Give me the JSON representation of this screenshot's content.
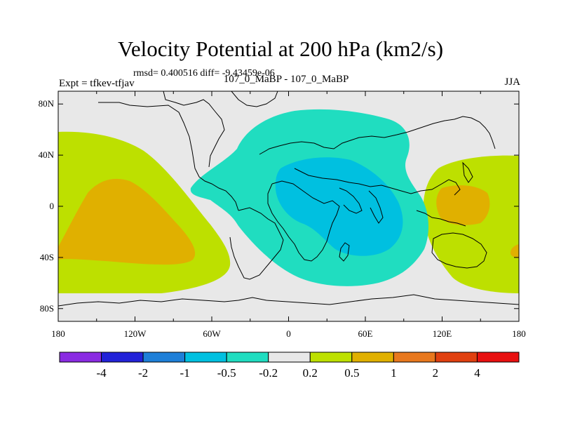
{
  "title": "Velocity Potential at 200 hPa (km2/s)",
  "stats": "rmsd= 0.400516 diff= -9.43459e-06",
  "left_label": "Expt = tfkev-tfjav",
  "center_label": "107_0_MaBP - 107_0_MaBP",
  "right_label": "JJA",
  "lat_labels": [
    "80N",
    "40N",
    "0",
    "40S",
    "80S"
  ],
  "lon_labels": [
    "180",
    "120W",
    "60W",
    "0",
    "60E",
    "120E",
    "180"
  ],
  "colorbar": {
    "levels": [
      "-4",
      "-2",
      "-1",
      "-0.5",
      "-0.2",
      "0.2",
      "0.5",
      "1",
      "2",
      "4"
    ],
    "colors": [
      "#8a2be2",
      "#2222d8",
      "#1e7fd8",
      "#00c0e0",
      "#20ddc0",
      "#e8e8e8",
      "#bde000",
      "#e0b000",
      "#e8781e",
      "#e04010",
      "#e81010"
    ]
  },
  "map_colors": {
    "neutral": "#e8e8e8",
    "negative_weak": "#20ddc0",
    "negative_mid": "#00c0e0",
    "positive_weak": "#bde000",
    "positive_mid": "#e0b000"
  }
}
